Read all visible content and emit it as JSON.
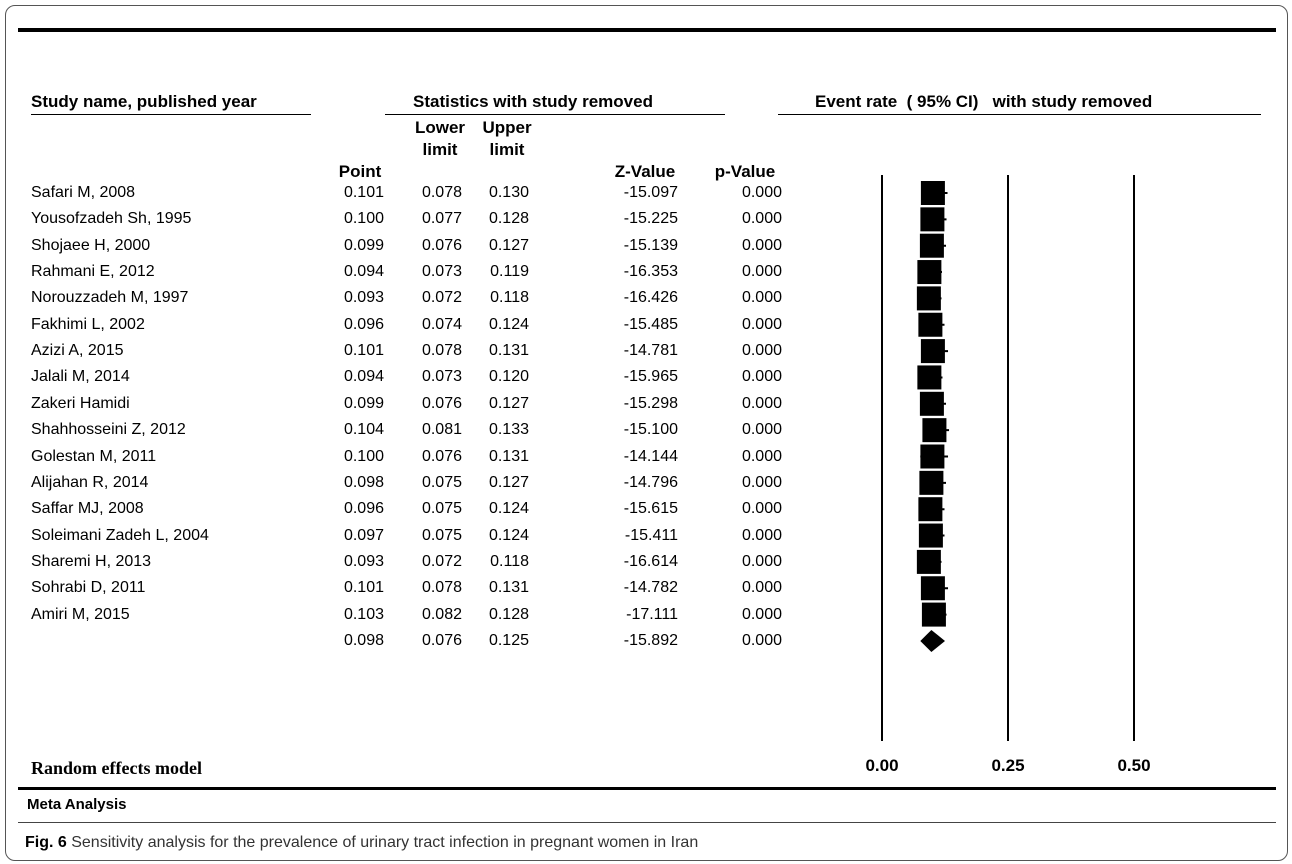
{
  "headers": {
    "study": "Study name, published year",
    "stats": "Statistics with study removed",
    "plot": "Event rate  ( 95% CI)   with study removed"
  },
  "columns": {
    "point": "Point",
    "lower_1": "Lower",
    "lower_2": "limit",
    "upper_1": "Upper",
    "upper_2": "limit",
    "z": "Z-Value",
    "p": "p-Value"
  },
  "rows": [
    {
      "name": "Safari M, 2008",
      "point": "0.101",
      "lower": "0.078",
      "upper": "0.130",
      "z": "-15.097",
      "p": "0.000"
    },
    {
      "name": "Yousofzadeh Sh, 1995",
      "point": "0.100",
      "lower": "0.077",
      "upper": "0.128",
      "z": "-15.225",
      "p": "0.000"
    },
    {
      "name": "Shojaee H, 2000",
      "point": "0.099",
      "lower": "0.076",
      "upper": "0.127",
      "z": "-15.139",
      "p": "0.000"
    },
    {
      "name": "Rahmani E, 2012",
      "point": "0.094",
      "lower": "0.073",
      "upper": "0.119",
      "z": "-16.353",
      "p": "0.000"
    },
    {
      "name": "Norouzzadeh M, 1997",
      "point": "0.093",
      "lower": "0.072",
      "upper": "0.118",
      "z": "-16.426",
      "p": "0.000"
    },
    {
      "name": "Fakhimi L, 2002",
      "point": "0.096",
      "lower": "0.074",
      "upper": "0.124",
      "z": "-15.485",
      "p": "0.000"
    },
    {
      "name": "Azizi A, 2015",
      "point": "0.101",
      "lower": "0.078",
      "upper": "0.131",
      "z": "-14.781",
      "p": "0.000"
    },
    {
      "name": "Jalali M, 2014",
      "point": "0.094",
      "lower": "0.073",
      "upper": "0.120",
      "z": "-15.965",
      "p": "0.000"
    },
    {
      "name": "Zakeri Hamidi",
      "point": "0.099",
      "lower": "0.076",
      "upper": "0.127",
      "z": "-15.298",
      "p": "0.000"
    },
    {
      "name": "Shahhosseini Z, 2012",
      "point": "0.104",
      "lower": "0.081",
      "upper": "0.133",
      "z": "-15.100",
      "p": "0.000"
    },
    {
      "name": "Golestan M, 2011",
      "point": "0.100",
      "lower": "0.076",
      "upper": "0.131",
      "z": "-14.144",
      "p": "0.000"
    },
    {
      "name": "Alijahan R, 2014",
      "point": "0.098",
      "lower": "0.075",
      "upper": "0.127",
      "z": "-14.796",
      "p": "0.000"
    },
    {
      "name": "Saffar MJ, 2008",
      "point": "0.096",
      "lower": "0.075",
      "upper": "0.124",
      "z": "-15.615",
      "p": "0.000"
    },
    {
      "name": "Soleimani Zadeh L, 2004",
      "point": "0.097",
      "lower": "0.075",
      "upper": "0.124",
      "z": "-15.411",
      "p": "0.000"
    },
    {
      "name": "Sharemi H, 2013",
      "point": "0.093",
      "lower": "0.072",
      "upper": "0.118",
      "z": "-16.614",
      "p": "0.000"
    },
    {
      "name": "Sohrabi D, 2011",
      "point": "0.101",
      "lower": "0.078",
      "upper": "0.131",
      "z": "-14.782",
      "p": "0.000"
    },
    {
      "name": "Amiri M, 2015",
      "point": "0.103",
      "lower": "0.082",
      "upper": "0.128",
      "z": "-17.111",
      "p": "0.000"
    },
    {
      "name": "",
      "point": "0.098",
      "lower": "0.076",
      "upper": "0.125",
      "z": "-15.892",
      "p": "0.000"
    }
  ],
  "footer": {
    "model": "Random effects model",
    "meta": "Meta Analysis",
    "caption_label": "Fig. 6",
    "caption_text": " Sensitivity analysis for the prevalence of urinary tract infection in pregnant women in Iran"
  },
  "chart_data": {
    "type": "forest",
    "xlim": [
      0.0,
      0.5
    ],
    "xticks": [
      "0.00",
      "0.25",
      "0.50"
    ],
    "xtick_values": [
      0.0,
      0.25,
      0.5
    ],
    "reference_lines": [
      0.0,
      0.25,
      0.5
    ],
    "studies": [
      {
        "point": 0.101,
        "lower": 0.078,
        "upper": 0.13
      },
      {
        "point": 0.1,
        "lower": 0.077,
        "upper": 0.128
      },
      {
        "point": 0.099,
        "lower": 0.076,
        "upper": 0.127
      },
      {
        "point": 0.094,
        "lower": 0.073,
        "upper": 0.119
      },
      {
        "point": 0.093,
        "lower": 0.072,
        "upper": 0.118
      },
      {
        "point": 0.096,
        "lower": 0.074,
        "upper": 0.124
      },
      {
        "point": 0.101,
        "lower": 0.078,
        "upper": 0.131
      },
      {
        "point": 0.094,
        "lower": 0.073,
        "upper": 0.12
      },
      {
        "point": 0.099,
        "lower": 0.076,
        "upper": 0.127
      },
      {
        "point": 0.104,
        "lower": 0.081,
        "upper": 0.133
      },
      {
        "point": 0.1,
        "lower": 0.076,
        "upper": 0.131
      },
      {
        "point": 0.098,
        "lower": 0.075,
        "upper": 0.127
      },
      {
        "point": 0.096,
        "lower": 0.075,
        "upper": 0.124
      },
      {
        "point": 0.097,
        "lower": 0.075,
        "upper": 0.124
      },
      {
        "point": 0.093,
        "lower": 0.072,
        "upper": 0.118
      },
      {
        "point": 0.101,
        "lower": 0.078,
        "upper": 0.131
      },
      {
        "point": 0.103,
        "lower": 0.082,
        "upper": 0.128
      }
    ],
    "summary": {
      "point": 0.098,
      "lower": 0.076,
      "upper": 0.125
    }
  }
}
